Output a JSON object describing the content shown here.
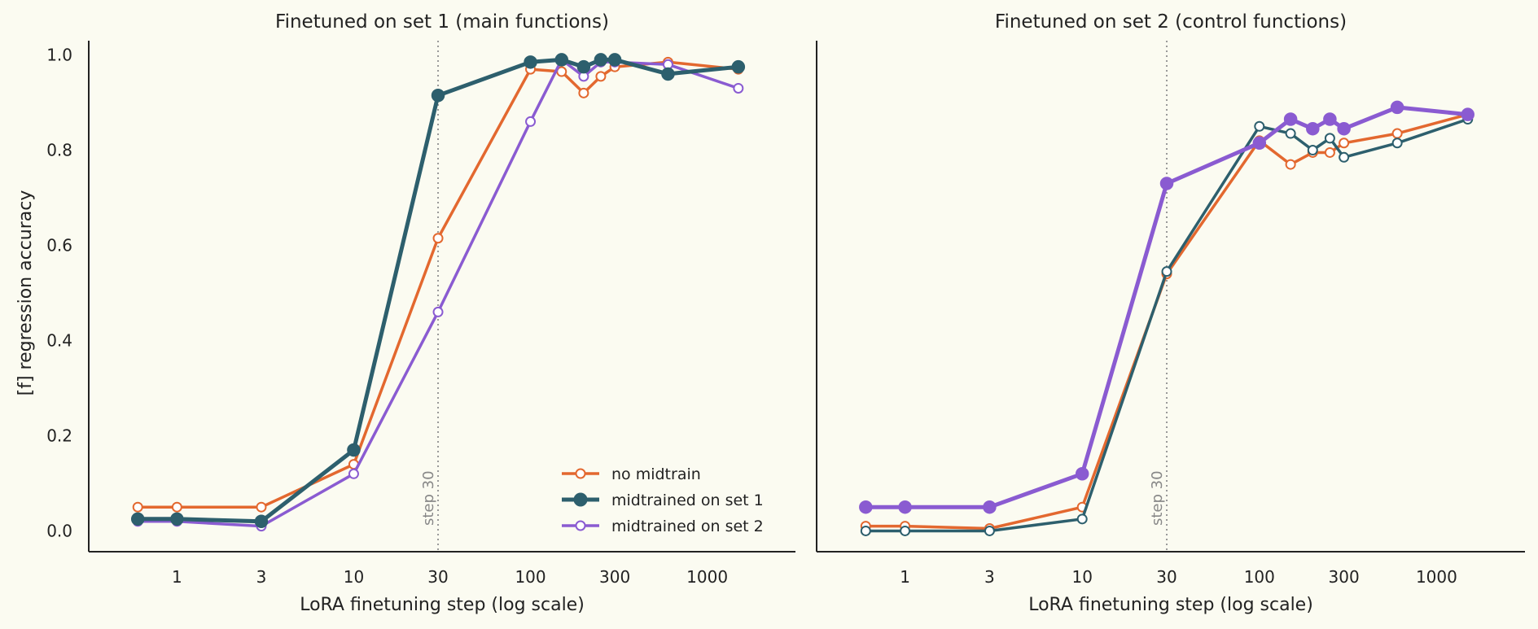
{
  "chart_data": [
    {
      "type": "line",
      "title": "Finetuned on set 1 (main functions)",
      "xlabel": "LoRA finetuning step (log scale)",
      "ylabel": "[f] regression accuracy",
      "x_scale": "log",
      "x_ticks": [
        1,
        3,
        10,
        30,
        100,
        300,
        1000
      ],
      "x_tick_labels": [
        "1",
        "3",
        "10",
        "30",
        "100",
        "300",
        "1000"
      ],
      "y_ticks": [
        0.0,
        0.2,
        0.4,
        0.6,
        0.8,
        1.0
      ],
      "y_tick_labels": [
        "0.0",
        "0.2",
        "0.4",
        "0.6",
        "0.8",
        "1.0"
      ],
      "ylim": [
        -0.03,
        1.03
      ],
      "x": [
        0.6,
        1,
        3,
        10,
        30,
        100,
        150,
        200,
        250,
        300,
        600,
        1500
      ],
      "series": [
        {
          "name": "no midtrain",
          "color": "#e3682f",
          "marker": "open",
          "highlight": false,
          "values": [
            0.05,
            0.05,
            0.05,
            0.14,
            0.615,
            0.97,
            0.965,
            0.92,
            0.955,
            0.975,
            0.985,
            0.97
          ]
        },
        {
          "name": "midtrained on set 1",
          "color": "#2d5f6d",
          "marker": "filled",
          "highlight": true,
          "values": [
            0.025,
            0.025,
            0.02,
            0.17,
            0.915,
            0.985,
            0.99,
            0.975,
            0.99,
            0.99,
            0.96,
            0.975
          ]
        },
        {
          "name": "midtrained on set 2",
          "color": "#8a5bd1",
          "marker": "open",
          "highlight": false,
          "values": [
            0.02,
            0.02,
            0.01,
            0.12,
            0.46,
            0.86,
            0.99,
            0.955,
            0.985,
            0.985,
            0.98,
            0.93
          ]
        }
      ],
      "annotation": {
        "text": "step 30",
        "x": 30
      },
      "legend_position": "lower-right"
    },
    {
      "type": "line",
      "title": "Finetuned on set 2 (control functions)",
      "xlabel": "LoRA finetuning step (log scale)",
      "ylabel": "",
      "x_scale": "log",
      "x_ticks": [
        1,
        3,
        10,
        30,
        100,
        300,
        1000
      ],
      "x_tick_labels": [
        "1",
        "3",
        "10",
        "30",
        "100",
        "300",
        "1000"
      ],
      "ylim": [
        -0.03,
        1.03
      ],
      "x": [
        0.6,
        1,
        3,
        10,
        30,
        100,
        150,
        200,
        250,
        300,
        600,
        1500
      ],
      "series": [
        {
          "name": "no midtrain",
          "color": "#e3682f",
          "marker": "open",
          "highlight": false,
          "values": [
            0.01,
            0.01,
            0.005,
            0.05,
            0.54,
            0.82,
            0.77,
            0.795,
            0.795,
            0.815,
            0.835,
            0.875
          ]
        },
        {
          "name": "midtrained on set 1",
          "color": "#2d5f6d",
          "marker": "open",
          "highlight": false,
          "values": [
            0.0,
            0.0,
            0.0,
            0.025,
            0.545,
            0.85,
            0.835,
            0.8,
            0.825,
            0.785,
            0.815,
            0.865
          ]
        },
        {
          "name": "midtrained on set 2",
          "color": "#8a5bd1",
          "marker": "filled",
          "highlight": true,
          "values": [
            0.05,
            0.05,
            0.05,
            0.12,
            0.73,
            0.815,
            0.865,
            0.845,
            0.865,
            0.845,
            0.89,
            0.875
          ]
        }
      ],
      "annotation": {
        "text": "step 30",
        "x": 30
      }
    }
  ]
}
